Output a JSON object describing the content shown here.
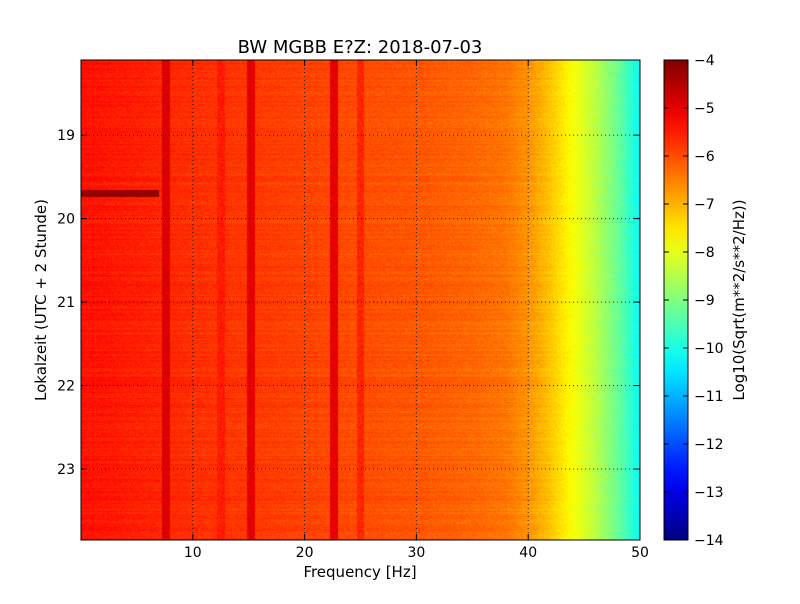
{
  "chart_data": {
    "type": "heatmap",
    "title": "BW MGBB E?Z: 2018-07-03",
    "xlabel": "Frequency [Hz]",
    "ylabel": "Lokalzeit (UTC + 2 Stunde)",
    "xlim": [
      0,
      50
    ],
    "ylim": [
      18.1,
      23.85
    ],
    "y_inverted": true,
    "x_ticks": [
      10,
      20,
      30,
      40,
      50
    ],
    "x_tick_labels": [
      "10",
      "20",
      "30",
      "40",
      "50"
    ],
    "y_ticks": [
      19,
      20,
      21,
      22,
      23
    ],
    "y_tick_labels": [
      "19",
      "20",
      "21",
      "22",
      "23"
    ],
    "grid": true,
    "colormap": "jet",
    "colorbar": {
      "label": "Log10(Sqrt(m**2/s**2/Hz))",
      "range": [
        -14,
        -4
      ],
      "ticks": [
        -4,
        -5,
        -6,
        -7,
        -8,
        -9,
        -10,
        -11,
        -12,
        -13,
        -14
      ],
      "tick_labels": [
        "−4",
        "−5",
        "−6",
        "−7",
        "−8",
        "−9",
        "−10",
        "−11",
        "−12",
        "−13",
        "−14"
      ]
    },
    "spectrum_profile": {
      "frequency_hz": [
        0,
        10,
        20,
        30,
        35,
        38,
        40,
        42,
        44,
        46,
        48,
        50
      ],
      "log10_amplitude": [
        -5.4,
        -5.7,
        -5.9,
        -6.1,
        -6.25,
        -6.4,
        -6.7,
        -7.2,
        -7.8,
        -8.4,
        -9.2,
        -10.2
      ]
    },
    "spectral_lines": [
      {
        "frequency_hz": 7.6,
        "log10_amplitude": -4.9
      },
      {
        "frequency_hz": 12.5,
        "log10_amplitude": -5.5
      },
      {
        "frequency_hz": 15.2,
        "log10_amplitude": -5.0
      },
      {
        "frequency_hz": 22.6,
        "log10_amplitude": -5.0
      },
      {
        "frequency_hz": 25.0,
        "log10_amplitude": -5.6
      }
    ],
    "events": [
      {
        "time": 19.7,
        "freq_range_hz": [
          0,
          7
        ],
        "log10_amplitude": -4.2
      }
    ]
  }
}
